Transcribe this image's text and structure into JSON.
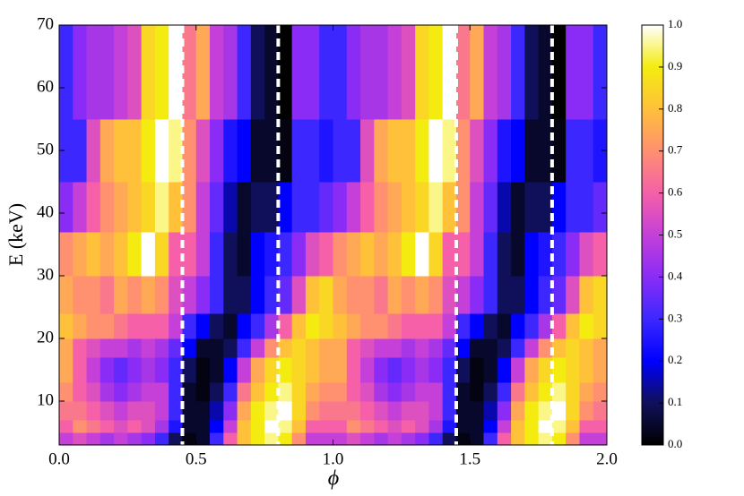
{
  "chart_data": {
    "type": "heatmap",
    "xlabel": "ϕ",
    "ylabel": "E (keV)",
    "x_edges": [
      0,
      0.05,
      0.1,
      0.15,
      0.2,
      0.25,
      0.3,
      0.35,
      0.4,
      0.45,
      0.5,
      0.55,
      0.6,
      0.65,
      0.7,
      0.75,
      0.8,
      0.85,
      0.9,
      0.95,
      1,
      1.05,
      1.1,
      1.15,
      1.2,
      1.25,
      1.3,
      1.35,
      1.4,
      1.45,
      1.5,
      1.55,
      1.6,
      1.65,
      1.7,
      1.75,
      1.8,
      1.85,
      1.9,
      1.95,
      2
    ],
    "y_edges": [
      3,
      5,
      7,
      10,
      13,
      17,
      20,
      24,
      30,
      37,
      45,
      55,
      70
    ],
    "z": [
      [
        0.5,
        0.55,
        0.5,
        0.45,
        0.5,
        0.45,
        0.4,
        0.3,
        0.1,
        0.02,
        0.05,
        0.3,
        0.6,
        0.8,
        0.9,
        0.95,
        0.9,
        0.7,
        0.5,
        0.5,
        0.5,
        0.55,
        0.5,
        0.45,
        0.5,
        0.45,
        0.4,
        0.3,
        0.1,
        0.02,
        0.05,
        0.3,
        0.6,
        0.8,
        0.9,
        0.95,
        0.9,
        0.7,
        0.5,
        0.5
      ],
      [
        0.6,
        0.7,
        0.65,
        0.6,
        0.55,
        0.6,
        0.55,
        0.45,
        0.25,
        0.05,
        0.05,
        0.2,
        0.5,
        0.8,
        0.9,
        1.0,
        0.95,
        0.8,
        0.6,
        0.6,
        0.6,
        0.7,
        0.65,
        0.6,
        0.55,
        0.6,
        0.55,
        0.45,
        0.25,
        0.05,
        0.05,
        0.2,
        0.5,
        0.8,
        0.9,
        1.0,
        0.95,
        0.8,
        0.6,
        0.6
      ],
      [
        0.65,
        0.65,
        0.6,
        0.55,
        0.5,
        0.55,
        0.55,
        0.5,
        0.3,
        0.05,
        0.05,
        0.15,
        0.4,
        0.75,
        0.9,
        0.95,
        1.0,
        0.85,
        0.7,
        0.65,
        0.65,
        0.65,
        0.6,
        0.55,
        0.5,
        0.55,
        0.55,
        0.5,
        0.3,
        0.05,
        0.05,
        0.15,
        0.4,
        0.75,
        0.9,
        0.95,
        1.0,
        0.85,
        0.7,
        0.65
      ],
      [
        0.7,
        0.6,
        0.55,
        0.45,
        0.4,
        0.45,
        0.5,
        0.5,
        0.3,
        0.05,
        0.02,
        0.1,
        0.3,
        0.65,
        0.8,
        0.9,
        0.95,
        0.85,
        0.75,
        0.7,
        0.7,
        0.6,
        0.55,
        0.45,
        0.4,
        0.45,
        0.5,
        0.5,
        0.3,
        0.05,
        0.02,
        0.1,
        0.3,
        0.65,
        0.8,
        0.9,
        0.95,
        0.85,
        0.75,
        0.7
      ],
      [
        0.75,
        0.6,
        0.5,
        0.4,
        0.35,
        0.4,
        0.45,
        0.4,
        0.3,
        0.1,
        0.02,
        0.05,
        0.2,
        0.5,
        0.75,
        0.85,
        0.9,
        0.85,
        0.8,
        0.75,
        0.75,
        0.6,
        0.5,
        0.4,
        0.35,
        0.4,
        0.45,
        0.4,
        0.3,
        0.1,
        0.02,
        0.05,
        0.2,
        0.5,
        0.75,
        0.85,
        0.9,
        0.85,
        0.8,
        0.75
      ],
      [
        0.75,
        0.6,
        0.55,
        0.5,
        0.5,
        0.45,
        0.5,
        0.45,
        0.35,
        0.2,
        0.05,
        0.05,
        0.1,
        0.3,
        0.5,
        0.7,
        0.8,
        0.85,
        0.8,
        0.75,
        0.75,
        0.6,
        0.55,
        0.5,
        0.5,
        0.45,
        0.5,
        0.45,
        0.35,
        0.2,
        0.05,
        0.05,
        0.1,
        0.3,
        0.5,
        0.7,
        0.8,
        0.85,
        0.8,
        0.75
      ],
      [
        0.8,
        0.75,
        0.7,
        0.7,
        0.65,
        0.6,
        0.6,
        0.6,
        0.5,
        0.3,
        0.2,
        0.1,
        0.05,
        0.2,
        0.3,
        0.45,
        0.6,
        0.8,
        0.9,
        0.85,
        0.8,
        0.75,
        0.7,
        0.7,
        0.65,
        0.6,
        0.6,
        0.6,
        0.5,
        0.3,
        0.2,
        0.1,
        0.05,
        0.2,
        0.3,
        0.45,
        0.6,
        0.8,
        0.9,
        0.85
      ],
      [
        0.75,
        0.7,
        0.7,
        0.65,
        0.75,
        0.7,
        0.75,
        0.7,
        0.55,
        0.5,
        0.4,
        0.3,
        0.1,
        0.1,
        0.2,
        0.3,
        0.35,
        0.55,
        0.8,
        0.85,
        0.75,
        0.7,
        0.7,
        0.65,
        0.75,
        0.7,
        0.75,
        0.7,
        0.55,
        0.5,
        0.4,
        0.3,
        0.1,
        0.1,
        0.2,
        0.3,
        0.35,
        0.55,
        0.8,
        0.85
      ],
      [
        0.7,
        0.75,
        0.8,
        0.75,
        0.8,
        0.9,
        1.0,
        0.85,
        0.6,
        0.6,
        0.5,
        0.3,
        0.1,
        0.05,
        0.2,
        0.25,
        0.3,
        0.4,
        0.55,
        0.6,
        0.7,
        0.75,
        0.8,
        0.75,
        0.8,
        0.9,
        1.0,
        0.85,
        0.6,
        0.6,
        0.5,
        0.3,
        0.1,
        0.05,
        0.2,
        0.25,
        0.3,
        0.4,
        0.55,
        0.6
      ],
      [
        0.4,
        0.5,
        0.6,
        0.7,
        0.75,
        0.8,
        0.85,
        0.95,
        0.8,
        0.7,
        0.5,
        0.35,
        0.15,
        0.05,
        0.1,
        0.1,
        0.2,
        0.3,
        0.3,
        0.35,
        0.4,
        0.5,
        0.6,
        0.7,
        0.75,
        0.8,
        0.85,
        0.95,
        0.8,
        0.7,
        0.5,
        0.35,
        0.15,
        0.05,
        0.1,
        0.1,
        0.2,
        0.3,
        0.3,
        0.35
      ],
      [
        0.3,
        0.3,
        0.55,
        0.75,
        0.8,
        0.8,
        0.9,
        1.0,
        0.95,
        0.7,
        0.55,
        0.4,
        0.25,
        0.2,
        0.05,
        0.05,
        0.02,
        0.3,
        0.3,
        0.25,
        0.3,
        0.3,
        0.55,
        0.75,
        0.8,
        0.8,
        0.9,
        1.0,
        0.95,
        0.7,
        0.55,
        0.4,
        0.25,
        0.2,
        0.05,
        0.05,
        0.02,
        0.3,
        0.3,
        0.25
      ],
      [
        0.3,
        0.4,
        0.45,
        0.45,
        0.5,
        0.55,
        0.85,
        0.9,
        1.0,
        0.65,
        0.75,
        0.5,
        0.45,
        0.3,
        0.1,
        0.05,
        0.0,
        0.4,
        0.4,
        0.3,
        0.3,
        0.4,
        0.45,
        0.45,
        0.5,
        0.55,
        0.85,
        0.9,
        1.0,
        0.65,
        0.75,
        0.5,
        0.45,
        0.3,
        0.1,
        0.05,
        0.0,
        0.4,
        0.4,
        0.3
      ]
    ],
    "xlim": [
      0,
      2
    ],
    "ylim": [
      3,
      70
    ],
    "xticks": [
      {
        "value": 0,
        "label": "0.0"
      },
      {
        "value": 0.5,
        "label": "0.5"
      },
      {
        "value": 1,
        "label": "1.0"
      },
      {
        "value": 1.5,
        "label": "1.5"
      },
      {
        "value": 2,
        "label": "2.0"
      }
    ],
    "yticks": [
      10,
      20,
      30,
      40,
      50,
      60,
      70
    ],
    "vlines": [
      0.45,
      0.8,
      1.45,
      1.8
    ],
    "vline_color": "#ffffff",
    "clim": [
      0,
      1
    ],
    "cticks": [
      {
        "value": 0,
        "label": "0.0"
      },
      {
        "value": 0.1,
        "label": "0.1"
      },
      {
        "value": 0.2,
        "label": "0.2"
      },
      {
        "value": 0.3,
        "label": "0.3"
      },
      {
        "value": 0.4,
        "label": "0.4"
      },
      {
        "value": 0.5,
        "label": "0.5"
      },
      {
        "value": 0.6,
        "label": "0.6"
      },
      {
        "value": 0.7,
        "label": "0.7"
      },
      {
        "value": 0.8,
        "label": "0.8"
      },
      {
        "value": 0.9,
        "label": "0.9"
      },
      {
        "value": 1,
        "label": "1.0"
      }
    ],
    "colormap": [
      "#000000",
      "#10105a",
      "#0000ff",
      "#3c28ff",
      "#8a2cf6",
      "#c440d8",
      "#f560a8",
      "#ff9070",
      "#ffc03a",
      "#f4ec10",
      "#ffffff"
    ]
  }
}
